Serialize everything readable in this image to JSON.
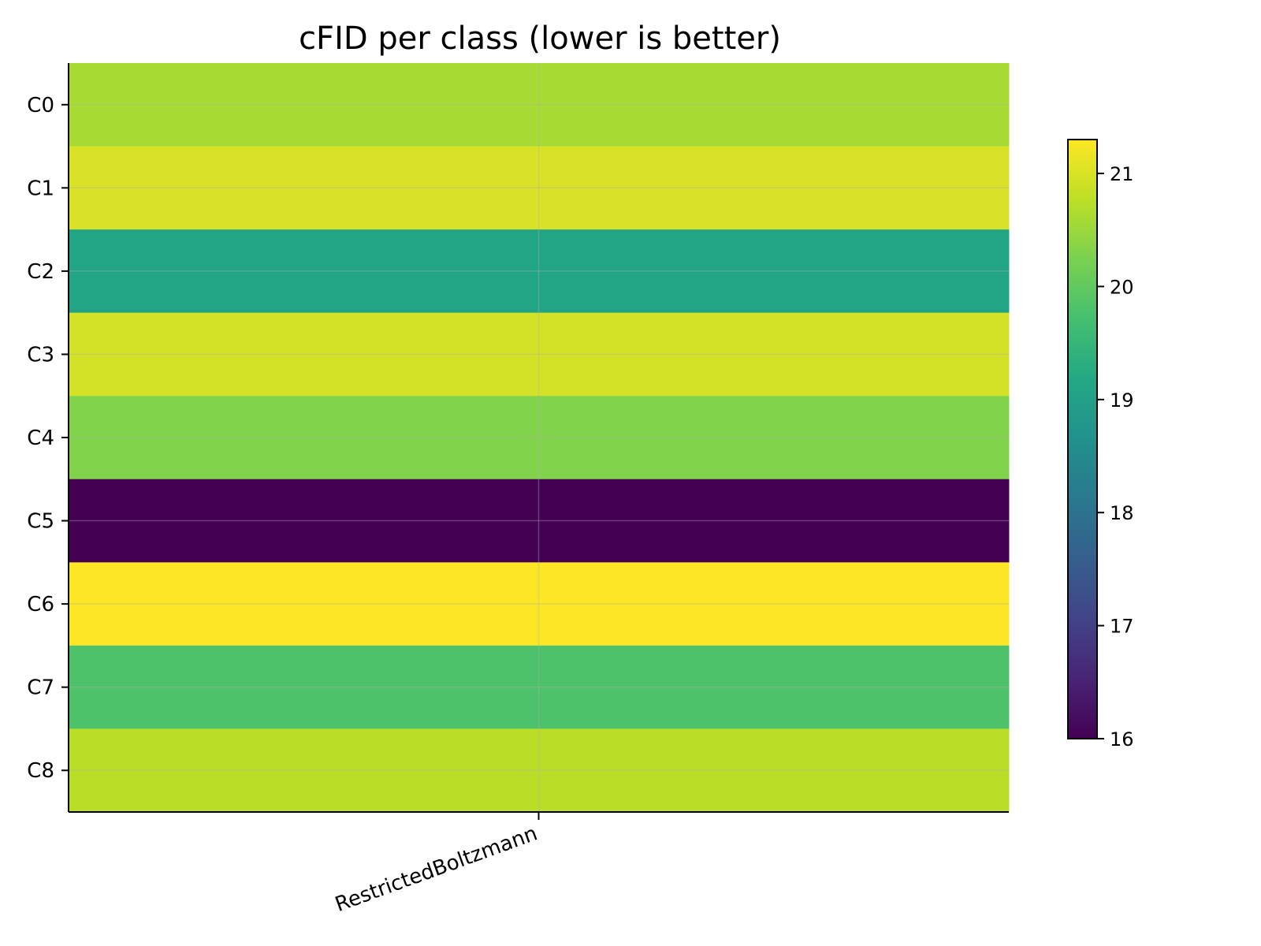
{
  "chart_data": {
    "type": "heatmap",
    "title": "cFID per class (lower is better)",
    "x_categories": [
      "RestrictedBoltzmann"
    ],
    "y_categories": [
      "C0",
      "C1",
      "C2",
      "C3",
      "C4",
      "C5",
      "C6",
      "C7",
      "C8"
    ],
    "values": [
      [
        20.6
      ],
      [
        21.0
      ],
      [
        19.1
      ],
      [
        20.95
      ],
      [
        20.3
      ],
      [
        16.0
      ],
      [
        21.3
      ],
      [
        19.8
      ],
      [
        20.75
      ]
    ],
    "colormap": "viridis",
    "colorbar": {
      "range": [
        16.0,
        21.3
      ],
      "ticks": [
        "16",
        "17",
        "18",
        "19",
        "20",
        "21"
      ]
    },
    "grid": true
  }
}
